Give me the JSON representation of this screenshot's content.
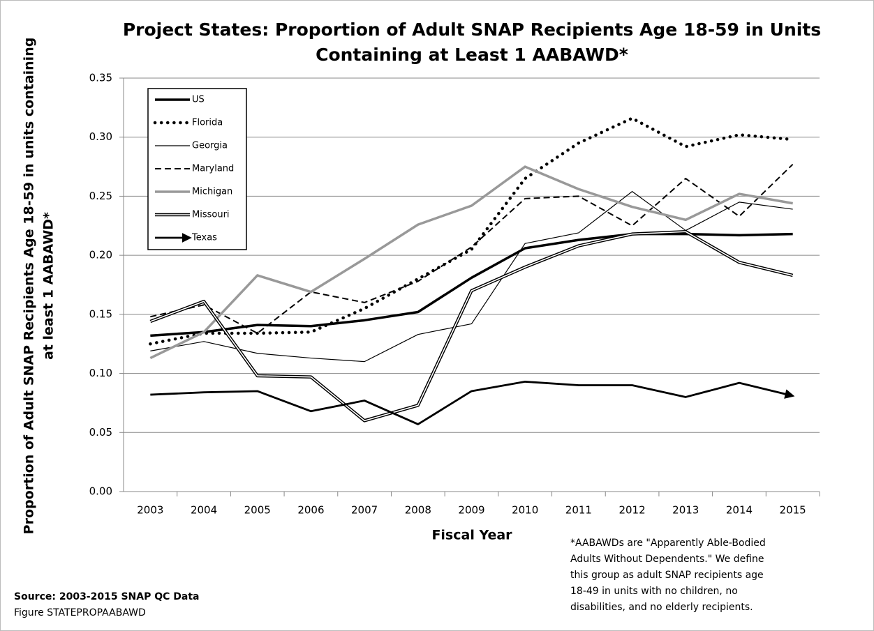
{
  "chart_data": {
    "type": "line",
    "title": [
      "Project States: Proportion of Adult SNAP Recipients Age 18-59 in Units",
      "Containing at Least 1 AABAWD*"
    ],
    "x_label": "Fiscal Year",
    "y_label": [
      "Proportion of Adult SNAP Recipients Age 18-59 in units containing",
      "at least 1 AABAWD*"
    ],
    "categories": [
      "2003",
      "2004",
      "2005",
      "2006",
      "2007",
      "2008",
      "2009",
      "2010",
      "2011",
      "2012",
      "2013",
      "2014",
      "2015"
    ],
    "ylim": [
      0,
      0.35
    ],
    "yticks": [
      {
        "value": 0,
        "label": "0.00"
      },
      {
        "value": 0.05,
        "label": "0.05"
      },
      {
        "value": 0.1,
        "label": "0.10"
      },
      {
        "value": 0.15,
        "label": "0.15"
      },
      {
        "value": 0.2,
        "label": "0.20"
      },
      {
        "value": 0.25,
        "label": "0.25"
      },
      {
        "value": 0.3,
        "label": "0.30"
      },
      {
        "value": 0.35,
        "label": "0.35"
      }
    ],
    "grid": true,
    "legend": "upper left",
    "series": [
      {
        "name": "US",
        "color": "#000000",
        "style": "solid-bold",
        "values": [
          0.132,
          0.135,
          0.141,
          0.14,
          0.145,
          0.152,
          0.181,
          0.206,
          0.213,
          0.218,
          0.218,
          0.217,
          0.218
        ]
      },
      {
        "name": "Florida",
        "color": "#000000",
        "style": "dotted",
        "values": [
          0.125,
          0.134,
          0.134,
          0.135,
          0.155,
          0.18,
          0.205,
          0.265,
          0.295,
          0.316,
          0.292,
          0.302,
          0.298
        ]
      },
      {
        "name": "Georgia",
        "color": "#000000",
        "style": "solid-thin",
        "values": [
          0.119,
          0.127,
          0.117,
          0.113,
          0.11,
          0.133,
          0.142,
          0.21,
          0.219,
          0.254,
          0.221,
          0.245,
          0.239
        ]
      },
      {
        "name": "Maryland",
        "color": "#000000",
        "style": "dashed",
        "values": [
          0.148,
          0.158,
          0.134,
          0.169,
          0.16,
          0.178,
          0.207,
          0.248,
          0.25,
          0.225,
          0.265,
          0.233,
          0.277
        ]
      },
      {
        "name": "Michigan",
        "color": "#999999",
        "style": "solid-bold",
        "values": [
          0.113,
          0.135,
          0.183,
          0.169,
          0.197,
          0.226,
          0.242,
          0.275,
          0.256,
          0.241,
          0.23,
          0.252,
          0.244
        ]
      },
      {
        "name": "Missouri",
        "color": "#000000",
        "style": "double",
        "values": [
          0.144,
          0.161,
          0.098,
          0.097,
          0.06,
          0.073,
          0.17,
          0.19,
          0.208,
          0.218,
          0.22,
          0.194,
          0.183
        ]
      },
      {
        "name": "Texas",
        "color": "#000000",
        "style": "arrow",
        "values": [
          0.082,
          0.084,
          0.085,
          0.068,
          0.077,
          0.057,
          0.085,
          0.093,
          0.09,
          0.09,
          0.08,
          0.092,
          0.081
        ]
      }
    ],
    "footnote": [
      "*AABAWDs are \"Apparently Able-Bodied",
      "Adults Without Dependents.\" We define",
      "this group as adult SNAP recipients age",
      "18-49 in units with no children, no",
      "disabilities, and no elderly recipients."
    ],
    "source": "Source: 2003-2015 SNAP QC Data",
    "figure_label": "Figure STATEPROPAABAWD"
  }
}
